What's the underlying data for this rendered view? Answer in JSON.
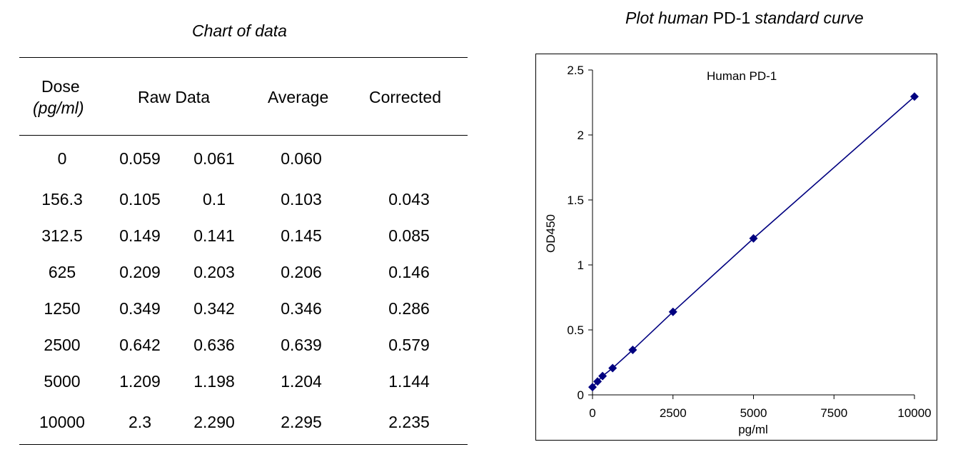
{
  "table": {
    "title": "Chart of data",
    "headers": {
      "dose": "Dose",
      "dose_unit": "(pg/ml)",
      "raw": "Raw Data",
      "average": "Average",
      "corrected": "Corrected"
    },
    "rows": [
      {
        "dose": "0",
        "raw1": "0.059",
        "raw2": "0.061",
        "avg": "0.060",
        "corr": ""
      },
      {
        "dose": "156.3",
        "raw1": "0.105",
        "raw2": "0.1",
        "avg": "0.103",
        "corr": "0.043"
      },
      {
        "dose": "312.5",
        "raw1": "0.149",
        "raw2": "0.141",
        "avg": "0.145",
        "corr": "0.085"
      },
      {
        "dose": "625",
        "raw1": "0.209",
        "raw2": "0.203",
        "avg": "0.206",
        "corr": "0.146"
      },
      {
        "dose": "1250",
        "raw1": "0.349",
        "raw2": "0.342",
        "avg": "0.346",
        "corr": "0.286"
      },
      {
        "dose": "2500",
        "raw1": "0.642",
        "raw2": "0.636",
        "avg": "0.639",
        "corr": "0.579"
      },
      {
        "dose": "5000",
        "raw1": "1.209",
        "raw2": "1.198",
        "avg": "1.204",
        "corr": "1.144"
      },
      {
        "dose": "10000",
        "raw1": "2.3",
        "raw2": "2.290",
        "avg": "2.295",
        "corr": "2.235"
      }
    ]
  },
  "chart_title": {
    "part1": "Plot human",
    "part2": "PD-1",
    "part3": "standard curve"
  },
  "chart_data": {
    "type": "line",
    "title": "Human PD-1",
    "xlabel": "pg/ml",
    "ylabel": "OD450",
    "xlim": [
      0,
      10000
    ],
    "ylim": [
      0,
      2.5
    ],
    "x_ticks": [
      0,
      2500,
      5000,
      7500,
      10000
    ],
    "y_ticks": [
      0,
      0.5,
      1,
      1.5,
      2,
      2.5
    ],
    "x_tick_labels": [
      "0",
      "2500",
      "5000",
      "7500",
      "10000"
    ],
    "y_tick_labels": [
      "0",
      "0.5",
      "1",
      "1.5",
      "2",
      "2.5"
    ],
    "grid": false,
    "series": [
      {
        "name": "Human PD-1",
        "color": "#000080",
        "marker": "diamond",
        "x": [
          0,
          156.3,
          312.5,
          625,
          1250,
          2500,
          5000,
          10000
        ],
        "y": [
          0.06,
          0.103,
          0.145,
          0.206,
          0.346,
          0.639,
          1.204,
          2.295
        ]
      }
    ]
  }
}
